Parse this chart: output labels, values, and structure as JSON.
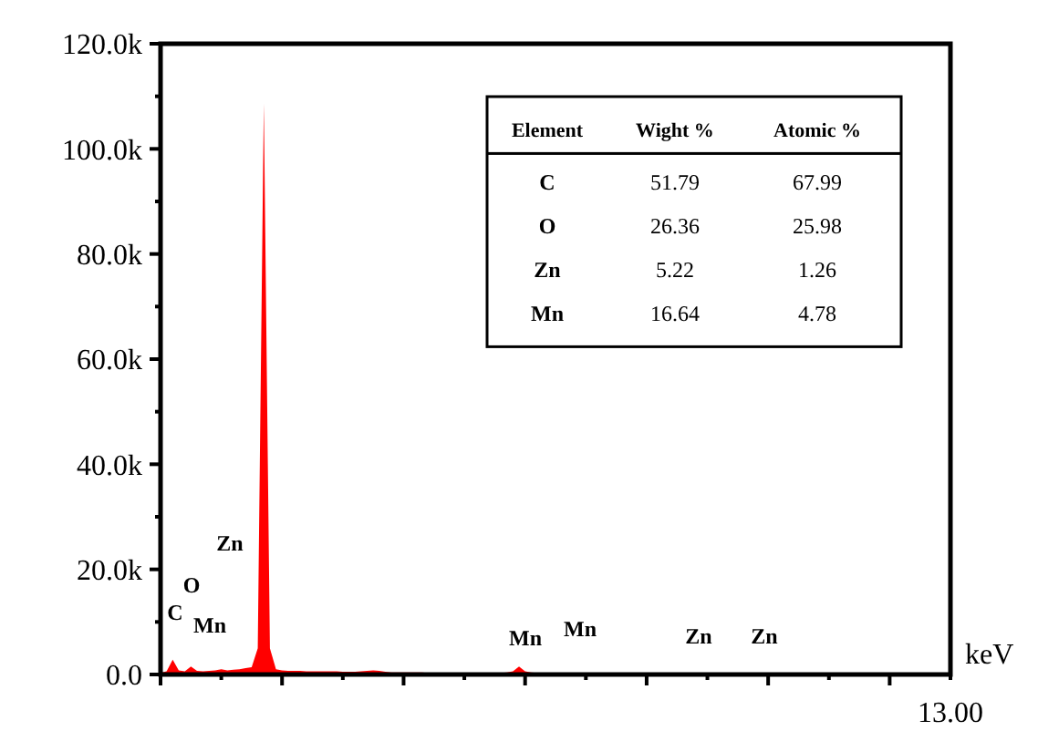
{
  "chart_data": {
    "type": "area",
    "categories": [
      null,
      null,
      null,
      null,
      null,
      null,
      null,
      null,
      null,
      null,
      null,
      null,
      null,
      null,
      null,
      null,
      null,
      null,
      null,
      null,
      null,
      null,
      null,
      null,
      null,
      null,
      null,
      null,
      null,
      null,
      null,
      null,
      null,
      null,
      null,
      null,
      null,
      null,
      null,
      null,
      null,
      null,
      null,
      null,
      null,
      null,
      null,
      null,
      null,
      null,
      null,
      null,
      null,
      null,
      null,
      null,
      null,
      null,
      null,
      null,
      null,
      null,
      null,
      null,
      null,
      null,
      null,
      null,
      null,
      null,
      null,
      null,
      null,
      null,
      null,
      null,
      null,
      null,
      null,
      null,
      null,
      null,
      null,
      null,
      null,
      null,
      null,
      null,
      null,
      null,
      null,
      null,
      null,
      null,
      null,
      null,
      null,
      null,
      null,
      null,
      null,
      null,
      null,
      null,
      null,
      null,
      null,
      null,
      null,
      null,
      null,
      null,
      null,
      null,
      null,
      null,
      null,
      null,
      null,
      null,
      null,
      null,
      null,
      null,
      null,
      null,
      null,
      null,
      null,
      null,
      null
    ],
    "series": [
      {
        "color": "#ff0000",
        "values": [
          0.3,
          0.6,
          2.8,
          0.8,
          0.6,
          1.5,
          0.7,
          0.6,
          0.7,
          0.8,
          1.0,
          0.8,
          0.9,
          1.0,
          1.2,
          1.4,
          5,
          108.6,
          5,
          1.0,
          0.8,
          0.7,
          0.7,
          0.7,
          0.6,
          0.6,
          0.6,
          0.6,
          0.6,
          0.6,
          0.5,
          0.5,
          0.5,
          0.6,
          0.7,
          0.8,
          0.7,
          0.5,
          0.4,
          0.4,
          0.4,
          0.4,
          0.4,
          0.4,
          0.3,
          0.3,
          0.3,
          0.3,
          0.3,
          0.3,
          0.3,
          0.3,
          0.3,
          0.3,
          0.3,
          0.3,
          0.3,
          0.4,
          0.6,
          1.5,
          0.6,
          0.4,
          0.3,
          0.3,
          0.3,
          0.3,
          0.3,
          0.3,
          0.3,
          0.3,
          0.3,
          0.3,
          0.3,
          0.3,
          0.3,
          0.3,
          0.3,
          0.3,
          0.3,
          0.3,
          0.3,
          0.3,
          0.3,
          0.3,
          0.3,
          0.3,
          0.3,
          0.3,
          0.3,
          0.3,
          0.2,
          0.2,
          0.2,
          0.2,
          0.2,
          0.2,
          0.2,
          0.2,
          0.2,
          0.2,
          0.2,
          0.2,
          0.2,
          0.2,
          0.2,
          0.2,
          0.2,
          0.2,
          0.2,
          0.2,
          0.2,
          0.2,
          0.2,
          0.2,
          0.2,
          0.2,
          0.2,
          0.2,
          0.2,
          0.2,
          0.2,
          0.2,
          0.2,
          0.2,
          0.2,
          0.2,
          0.2,
          0.2,
          0.2,
          0.2,
          0.2
        ]
      }
    ],
    "xlabel": "keV",
    "ylim": [
      0,
      120
    ],
    "yticks": [
      {
        "value": 0,
        "label": "0.0"
      },
      {
        "value": 10,
        "label": null
      },
      {
        "value": 20,
        "label": "20.0k"
      },
      {
        "value": 30,
        "label": null
      },
      {
        "value": 40,
        "label": "40.0k"
      },
      {
        "value": 50,
        "label": null
      },
      {
        "value": 60,
        "label": "60.0k"
      },
      {
        "value": 70,
        "label": null
      },
      {
        "value": 80,
        "label": "80.0k"
      },
      {
        "value": 90,
        "label": null
      },
      {
        "value": 100,
        "label": "100.0k"
      },
      {
        "value": 110,
        "label": null
      },
      {
        "value": 120,
        "label": "120.0k"
      }
    ],
    "annotations": [
      "13.00",
      "C",
      "O",
      "Mn",
      "Zn",
      "Mn",
      "Mn",
      "Zn",
      "Zn",
      "Element",
      "Wight %",
      "Atomic %",
      "C",
      "51.79",
      "67.99",
      "O",
      "26.36",
      "25.98",
      "Zn",
      "5.22",
      "1.26",
      "Mn",
      "16.64",
      "4.78"
    ]
  }
}
